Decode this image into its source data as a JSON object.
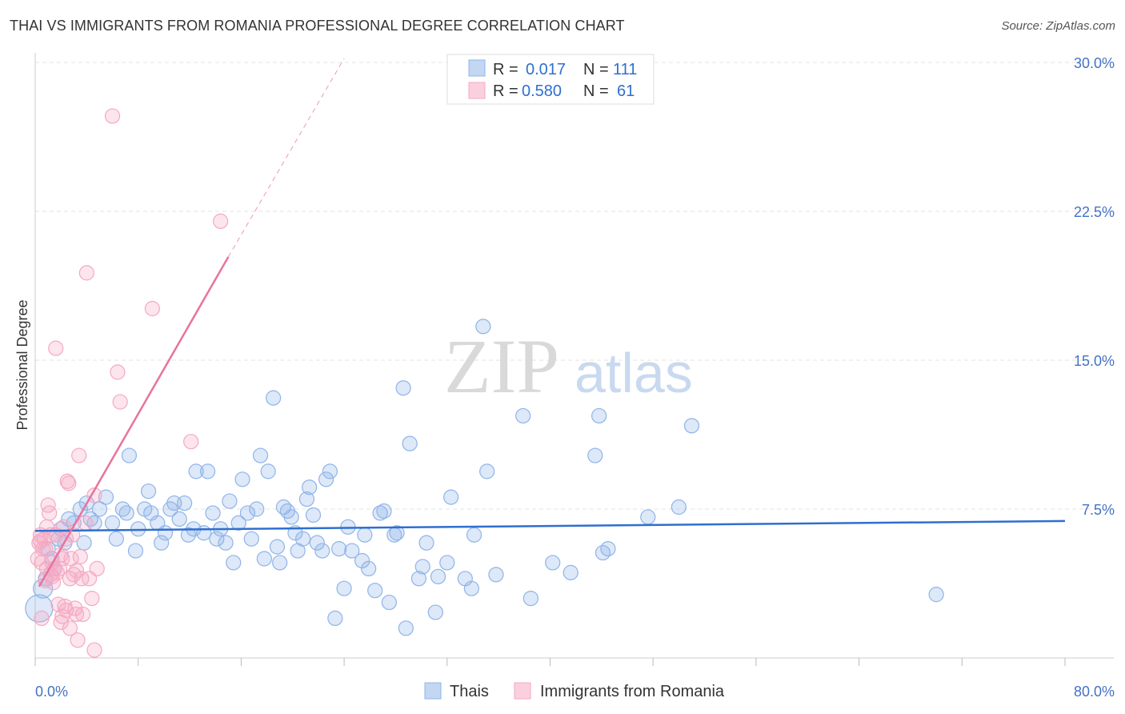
{
  "chart_data": {
    "type": "scatter",
    "title": "THAI VS IMMIGRANTS FROM ROMANIA PROFESSIONAL DEGREE CORRELATION CHART",
    "source": "Source: ZipAtlas.com",
    "xlabel": "",
    "ylabel": "Professional Degree",
    "xlim": [
      0,
      80
    ],
    "ylim": [
      0,
      30
    ],
    "x_tick_labels": [
      "0.0%",
      "80.0%"
    ],
    "y_ticks": [
      7.5,
      15.0,
      22.5,
      30.0
    ],
    "y_tick_labels": [
      "7.5%",
      "15.0%",
      "22.5%",
      "30.0%"
    ],
    "grid": true,
    "watermark": {
      "part1": "ZIP",
      "part2": "atlas"
    },
    "legend": {
      "rows": [
        {
          "r_label": "R =",
          "r_value": "0.017",
          "n_label": "N =",
          "n_value": "111"
        },
        {
          "r_label": "R =",
          "r_value": "0.580",
          "n_label": "N =",
          "n_value": "61"
        }
      ],
      "bottom": [
        "Thais",
        "Immigrants from Romania"
      ]
    },
    "series": [
      {
        "name": "Thais",
        "color": "#8fb4e8",
        "line_color": "#2f6fcf",
        "trend": {
          "x": [
            0,
            80
          ],
          "y": [
            6.4,
            6.9
          ],
          "dashed": false
        },
        "points": [
          [
            0.3,
            2.5
          ],
          [
            0.6,
            3.5
          ],
          [
            0.8,
            4.0
          ],
          [
            1.0,
            5.5
          ],
          [
            1.3,
            5.0
          ],
          [
            1.5,
            4.5
          ],
          [
            1.8,
            6.0
          ],
          [
            2.0,
            6.5
          ],
          [
            2.3,
            5.8
          ],
          [
            2.6,
            7.0
          ],
          [
            3.0,
            6.8
          ],
          [
            3.5,
            7.5
          ],
          [
            3.8,
            5.8
          ],
          [
            4.0,
            7.8
          ],
          [
            4.3,
            7.0
          ],
          [
            4.6,
            6.8
          ],
          [
            5.0,
            7.5
          ],
          [
            5.5,
            8.1
          ],
          [
            6.0,
            6.8
          ],
          [
            6.3,
            6.0
          ],
          [
            6.8,
            7.5
          ],
          [
            7.1,
            7.3
          ],
          [
            7.3,
            10.2
          ],
          [
            7.8,
            5.4
          ],
          [
            8.0,
            6.5
          ],
          [
            8.5,
            7.5
          ],
          [
            8.8,
            8.4
          ],
          [
            9.0,
            7.3
          ],
          [
            9.5,
            6.8
          ],
          [
            9.8,
            5.8
          ],
          [
            10.1,
            6.3
          ],
          [
            10.5,
            7.5
          ],
          [
            10.8,
            7.8
          ],
          [
            11.2,
            7.0
          ],
          [
            11.6,
            7.8
          ],
          [
            11.9,
            6.2
          ],
          [
            12.3,
            6.5
          ],
          [
            12.5,
            9.4
          ],
          [
            13.1,
            6.3
          ],
          [
            13.4,
            9.4
          ],
          [
            13.8,
            7.3
          ],
          [
            14.1,
            6.0
          ],
          [
            14.4,
            6.5
          ],
          [
            14.8,
            5.8
          ],
          [
            15.1,
            7.9
          ],
          [
            15.4,
            4.8
          ],
          [
            15.8,
            6.8
          ],
          [
            16.1,
            9.0
          ],
          [
            16.5,
            7.3
          ],
          [
            16.8,
            6.0
          ],
          [
            17.2,
            7.5
          ],
          [
            17.5,
            10.2
          ],
          [
            17.8,
            5.0
          ],
          [
            18.1,
            9.4
          ],
          [
            18.5,
            13.1
          ],
          [
            18.8,
            5.6
          ],
          [
            19.0,
            4.8
          ],
          [
            19.3,
            7.6
          ],
          [
            19.6,
            7.4
          ],
          [
            19.9,
            7.1
          ],
          [
            20.2,
            6.3
          ],
          [
            20.4,
            5.4
          ],
          [
            20.8,
            6.0
          ],
          [
            21.1,
            8.0
          ],
          [
            21.3,
            8.6
          ],
          [
            21.6,
            7.2
          ],
          [
            21.9,
            5.8
          ],
          [
            22.3,
            5.4
          ],
          [
            22.6,
            9.0
          ],
          [
            22.9,
            9.4
          ],
          [
            23.3,
            2.0
          ],
          [
            23.6,
            5.5
          ],
          [
            24.0,
            3.5
          ],
          [
            24.3,
            6.6
          ],
          [
            24.6,
            5.4
          ],
          [
            25.4,
            4.9
          ],
          [
            25.6,
            6.2
          ],
          [
            25.9,
            4.5
          ],
          [
            26.4,
            3.4
          ],
          [
            26.8,
            7.3
          ],
          [
            27.1,
            7.4
          ],
          [
            27.5,
            2.8
          ],
          [
            27.9,
            6.2
          ],
          [
            28.1,
            6.3
          ],
          [
            28.6,
            13.6
          ],
          [
            28.8,
            1.5
          ],
          [
            29.1,
            10.8
          ],
          [
            29.8,
            4.0
          ],
          [
            30.1,
            4.6
          ],
          [
            30.4,
            5.8
          ],
          [
            31.1,
            2.3
          ],
          [
            31.3,
            4.1
          ],
          [
            32.0,
            4.8
          ],
          [
            32.3,
            8.1
          ],
          [
            33.4,
            4.0
          ],
          [
            33.9,
            3.5
          ],
          [
            34.1,
            6.2
          ],
          [
            34.8,
            16.7
          ],
          [
            35.1,
            9.4
          ],
          [
            35.8,
            4.2
          ],
          [
            37.9,
            12.2
          ],
          [
            38.5,
            3.0
          ],
          [
            40.2,
            4.8
          ],
          [
            41.6,
            4.3
          ],
          [
            43.5,
            10.2
          ],
          [
            43.8,
            12.2
          ],
          [
            44.1,
            5.3
          ],
          [
            44.5,
            5.5
          ],
          [
            47.6,
            7.1
          ],
          [
            50.0,
            7.6
          ],
          [
            51.0,
            11.7
          ],
          [
            70.0,
            3.2
          ]
        ]
      },
      {
        "name": "Immigrants from Romania",
        "color": "#f5a8c2",
        "line_color": "#e8739c",
        "trend": {
          "x": [
            0.3,
            15.0
          ],
          "y": [
            3.6,
            20.2
          ],
          "dashed": false
        },
        "trend_extension": {
          "x": [
            15.0,
            24.0
          ],
          "y": [
            20.2,
            30.2
          ],
          "dashed": true
        },
        "points": [
          [
            0.2,
            5.0
          ],
          [
            0.3,
            5.8
          ],
          [
            0.4,
            6.2
          ],
          [
            0.5,
            4.8
          ],
          [
            0.6,
            5.5
          ],
          [
            0.7,
            6.0
          ],
          [
            0.8,
            5.5
          ],
          [
            0.9,
            4.5
          ],
          [
            1.0,
            7.7
          ],
          [
            1.1,
            7.3
          ],
          [
            1.2,
            6.2
          ],
          [
            1.3,
            4.8
          ],
          [
            1.4,
            3.8
          ],
          [
            1.5,
            4.5
          ],
          [
            1.6,
            15.6
          ],
          [
            1.7,
            4.3
          ],
          [
            1.8,
            2.7
          ],
          [
            1.9,
            4.5
          ],
          [
            2.0,
            5.2
          ],
          [
            2.1,
            5.0
          ],
          [
            2.2,
            6.6
          ],
          [
            2.3,
            2.6
          ],
          [
            2.4,
            2.4
          ],
          [
            2.5,
            8.9
          ],
          [
            2.6,
            8.8
          ],
          [
            2.7,
            1.5
          ],
          [
            2.8,
            5.0
          ],
          [
            2.9,
            6.2
          ],
          [
            3.0,
            4.2
          ],
          [
            3.1,
            2.5
          ],
          [
            3.2,
            2.2
          ],
          [
            3.3,
            0.9
          ],
          [
            3.4,
            10.2
          ],
          [
            3.5,
            5.1
          ],
          [
            3.6,
            4.0
          ],
          [
            4.0,
            19.4
          ],
          [
            4.2,
            4.0
          ],
          [
            4.4,
            3.0
          ],
          [
            4.6,
            8.2
          ],
          [
            4.8,
            4.5
          ],
          [
            6.0,
            27.3
          ],
          [
            6.4,
            14.4
          ],
          [
            6.6,
            12.9
          ],
          [
            9.1,
            17.6
          ],
          [
            12.1,
            10.9
          ],
          [
            14.4,
            22.0
          ],
          [
            4.6,
            0.4
          ],
          [
            0.5,
            2.0
          ],
          [
            2.0,
            1.8
          ],
          [
            1.2,
            4.2
          ],
          [
            0.8,
            3.9
          ],
          [
            2.7,
            4.0
          ],
          [
            3.7,
            2.2
          ],
          [
            2.1,
            2.1
          ],
          [
            1.6,
            6.2
          ],
          [
            0.9,
            6.6
          ],
          [
            3.9,
            6.8
          ],
          [
            2.4,
            6.0
          ],
          [
            1.3,
            4.1
          ],
          [
            0.4,
            5.9
          ],
          [
            3.2,
            4.4
          ]
        ]
      }
    ]
  }
}
